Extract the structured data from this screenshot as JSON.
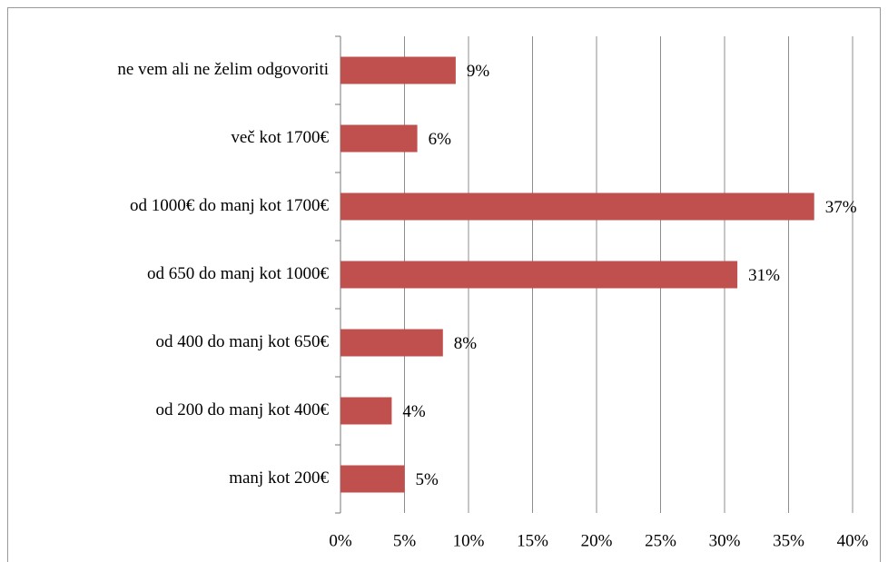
{
  "chart_data": {
    "type": "bar",
    "orientation": "horizontal",
    "categories": [
      "ne vem ali ne želim odgovoriti",
      "več kot 1700€",
      "od 1000€ do manj kot 1700€",
      "od 650 do manj kot 1000€",
      "od 400 do manj kot 650€",
      "od 200 do manj kot 400€",
      "manj kot 200€"
    ],
    "values": [
      9,
      6,
      37,
      31,
      8,
      4,
      5
    ],
    "value_labels": [
      "9%",
      "6%",
      "37%",
      "31%",
      "8%",
      "4%",
      "5%"
    ],
    "color": "#c0504d",
    "xlim": [
      0,
      40
    ],
    "xticks": [
      {
        "value": 0,
        "label": "0%"
      },
      {
        "value": 5,
        "label": "5%"
      },
      {
        "value": 10,
        "label": "10%"
      },
      {
        "value": 15,
        "label": "15%"
      },
      {
        "value": 20,
        "label": "20%"
      },
      {
        "value": 25,
        "label": "25%"
      },
      {
        "value": 30,
        "label": "30%"
      },
      {
        "value": 35,
        "label": "35%"
      },
      {
        "value": 40,
        "label": "40%"
      }
    ],
    "grid": true
  }
}
